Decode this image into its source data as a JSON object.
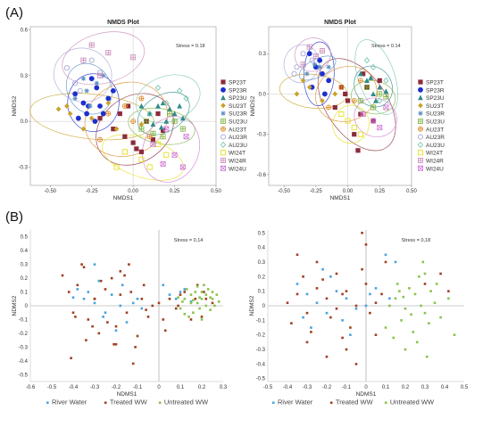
{
  "figure": {
    "label_a": "(A)",
    "label_b": "(B)"
  },
  "chart_data": [
    {
      "type": "scatter",
      "title": "NMDS Plot",
      "xlabel": "NMDS1",
      "ylabel": "NMDS2",
      "xlim": [
        -0.62,
        0.5
      ],
      "ylim": [
        -0.42,
        0.62
      ],
      "xticks": [
        "-0.50",
        "-0.25",
        "0.00",
        "0.25",
        "0.50"
      ],
      "yticks": [
        "-0.3",
        "0.0",
        "0.3",
        "0.6"
      ],
      "stress": "Stress = 0.18",
      "legend_position": "right",
      "grid": false,
      "series": [
        {
          "name": "SP23T",
          "color": "#8b2b3a",
          "marker": "square",
          "x": [
            -0.05,
            0.02,
            0.08,
            -0.12,
            0.15,
            0.12,
            0.05,
            -0.2,
            -0.08,
            0.18,
            0.0,
            -0.03
          ],
          "y": [
            -0.1,
            -0.18,
            0.0,
            -0.05,
            0.05,
            -0.12,
            -0.2,
            0.02,
            0.05,
            -0.06,
            -0.14,
            0.1
          ]
        },
        {
          "name": "SP23R",
          "color": "#1d2fd0",
          "marker": "circle",
          "x": [
            -0.35,
            -0.3,
            -0.28,
            -0.22,
            -0.2,
            -0.15,
            -0.33,
            -0.25,
            -0.18,
            -0.27,
            -0.23,
            -0.12
          ],
          "y": [
            0.18,
            0.12,
            0.05,
            0.22,
            0.1,
            0.15,
            0.02,
            0.28,
            0.05,
            0.1,
            0.0,
            0.2
          ]
        },
        {
          "name": "SP23U",
          "color": "#2e8b8b",
          "marker": "triangle",
          "x": [
            0.1,
            0.15,
            0.2,
            0.25,
            0.18,
            0.22,
            0.12,
            0.28,
            0.05,
            0.3,
            0.17
          ],
          "y": [
            0.05,
            0.1,
            0.0,
            0.05,
            0.12,
            0.08,
            -0.02,
            0.1,
            0.1,
            0.02,
            -0.04
          ]
        },
        {
          "name": "SU23T",
          "color": "#c9a22a",
          "marker": "diamond",
          "x": [
            -0.4,
            -0.38,
            -0.15,
            -0.3,
            -0.1,
            0.05,
            -0.45,
            -0.25
          ],
          "y": [
            0.1,
            0.05,
            0.12,
            -0.05,
            -0.05,
            -0.02,
            0.08,
            0.02
          ]
        },
        {
          "name": "SU23R",
          "color": "#5b8fc0",
          "marker": "asterisk",
          "x": [
            -0.28,
            -0.22,
            -0.35,
            -0.18,
            -0.3,
            -0.26
          ],
          "y": [
            0.2,
            0.25,
            0.15,
            0.3,
            0.28,
            0.1
          ]
        },
        {
          "name": "SU23U",
          "color": "#7fb343",
          "marker": "plus-box",
          "x": [
            0.05,
            0.18,
            0.25,
            0.12,
            0.3,
            0.22,
            0.08
          ],
          "y": [
            -0.05,
            -0.1,
            0.0,
            -0.08,
            -0.05,
            0.05,
            0.0
          ]
        },
        {
          "name": "AU23T",
          "color": "#e08a2a",
          "marker": "plus-circle",
          "x": [
            -0.15,
            -0.05,
            0.1,
            0.0,
            -0.2,
            0.05
          ],
          "y": [
            0.05,
            0.1,
            -0.1,
            0.0,
            -0.12,
            0.15
          ]
        },
        {
          "name": "AU23R",
          "color": "#a8a8d8",
          "marker": "circle-open",
          "x": [
            -0.4,
            -0.25,
            -0.32,
            -0.2,
            -0.35
          ],
          "y": [
            0.35,
            0.4,
            0.2,
            0.32,
            0.25
          ]
        },
        {
          "name": "AU23U",
          "color": "#7cc8b0",
          "marker": "diamond-open",
          "x": [
            0.2,
            0.28,
            0.1,
            0.32,
            0.15
          ],
          "y": [
            0.12,
            0.2,
            0.05,
            0.15,
            0.22
          ]
        },
        {
          "name": "WI24T",
          "color": "#e5e020",
          "marker": "square-open",
          "x": [
            -0.05,
            0.05,
            0.15,
            -0.1,
            0.2,
            0.1
          ],
          "y": [
            -0.2,
            -0.25,
            -0.15,
            -0.3,
            -0.22,
            -0.3
          ]
        },
        {
          "name": "WI24R",
          "color": "#c78ab8",
          "marker": "plus-box",
          "x": [
            -0.3,
            -0.15,
            -0.2,
            -0.25,
            0.0
          ],
          "y": [
            0.4,
            0.45,
            0.3,
            0.5,
            0.42
          ]
        },
        {
          "name": "WI24U",
          "color": "#d07ad8",
          "marker": "x-box",
          "x": [
            0.12,
            0.25,
            0.32,
            0.18,
            0.3,
            0.2
          ],
          "y": [
            -0.15,
            -0.22,
            -0.1,
            -0.28,
            -0.3,
            -0.05
          ]
        }
      ]
    },
    {
      "type": "scatter",
      "title": "NMDS Plot",
      "xlabel": "NMDS1",
      "ylabel": "NMDS2",
      "xlim": [
        -0.62,
        0.5
      ],
      "ylim": [
        -0.68,
        0.5
      ],
      "xticks": [
        "-0.50",
        "-0.25",
        "0.00",
        "0.25",
        "0.50"
      ],
      "yticks": [
        "-0.6",
        "-0.3",
        "0.0",
        "0.3"
      ],
      "stress": "Stress = 0.14",
      "legend_position": "right",
      "grid": false,
      "series": [
        {
          "name": "SP23T",
          "color": "#8b2b3a",
          "marker": "square",
          "x": [
            0.0,
            0.1,
            -0.05,
            0.15,
            0.2,
            0.05,
            -0.1,
            0.25,
            0.12,
            0.08,
            -0.02
          ],
          "y": [
            -0.05,
            -0.15,
            0.05,
            0.05,
            -0.2,
            -0.3,
            -0.1,
            0.1,
            0.15,
            -0.42,
            0.0
          ]
        },
        {
          "name": "SP23R",
          "color": "#1d2fd0",
          "marker": "circle",
          "x": [
            -0.3,
            -0.25,
            -0.2,
            -0.15,
            -0.28,
            -0.22,
            -0.18
          ],
          "y": [
            0.3,
            0.2,
            0.15,
            0.1,
            0.05,
            0.25,
            0.0
          ]
        },
        {
          "name": "SP23U",
          "color": "#2e8b8b",
          "marker": "triangle",
          "x": [
            0.15,
            0.2,
            0.25,
            0.1,
            0.22,
            0.3,
            0.18
          ],
          "y": [
            0.1,
            0.0,
            0.05,
            0.15,
            -0.05,
            0.02,
            0.12
          ]
        },
        {
          "name": "SU23T",
          "color": "#c9a22a",
          "marker": "diamond",
          "x": [
            -0.35,
            -0.3,
            -0.1,
            -0.4,
            -0.2
          ],
          "y": [
            0.1,
            0.05,
            0.0,
            0.0,
            -0.05
          ]
        },
        {
          "name": "SU23R",
          "color": "#5b8fc0",
          "marker": "asterisk",
          "x": [
            -0.22,
            -0.32,
            -0.15,
            -0.26
          ],
          "y": [
            0.2,
            0.15,
            0.2,
            0.22
          ]
        },
        {
          "name": "SU23U",
          "color": "#7fb343",
          "marker": "plus-box",
          "x": [
            0.1,
            0.2,
            0.25,
            0.15,
            0.3
          ],
          "y": [
            -0.05,
            -0.1,
            0.0,
            0.05,
            -0.02
          ]
        },
        {
          "name": "AU23T",
          "color": "#e08a2a",
          "marker": "plus-circle",
          "x": [
            -0.05,
            0.05,
            -0.15,
            0.1
          ],
          "y": [
            0.05,
            -0.05,
            -0.1,
            0.1
          ]
        },
        {
          "name": "AU23R",
          "color": "#a8a8d8",
          "marker": "circle-open",
          "x": [
            -0.4,
            -0.35,
            -0.28,
            -0.42
          ],
          "y": [
            0.2,
            0.3,
            0.25,
            0.15
          ]
        },
        {
          "name": "AU23U",
          "color": "#7cc8b0",
          "marker": "diamond-open",
          "x": [
            0.2,
            0.3,
            0.15,
            0.25
          ],
          "y": [
            0.2,
            0.1,
            0.25,
            -0.05
          ]
        },
        {
          "name": "WI24T",
          "color": "#e5e020",
          "marker": "square-open",
          "x": [
            0.0,
            0.1,
            0.05,
            -0.05
          ],
          "y": [
            -0.2,
            -0.3,
            -0.25,
            -0.15
          ]
        },
        {
          "name": "WI24R",
          "color": "#c78ab8",
          "marker": "plus-box",
          "x": [
            -0.3,
            -0.2,
            -0.25,
            -0.35
          ],
          "y": [
            0.35,
            0.32,
            0.28,
            0.22
          ]
        },
        {
          "name": "WI24U",
          "color": "#d07ad8",
          "marker": "x-box",
          "x": [
            0.2,
            0.3,
            0.25,
            0.12
          ],
          "y": [
            -0.2,
            -0.1,
            -0.25,
            -0.15
          ]
        }
      ]
    },
    {
      "type": "scatter",
      "xlabel": "NDMS1",
      "ylabel": "NDMS2",
      "xlim": [
        -0.6,
        0.3
      ],
      "ylim": [
        -0.55,
        0.55
      ],
      "xticks": [
        "-0.6",
        "-0.5",
        "-0.4",
        "-0.3",
        "-0.2",
        "-0.1",
        "0",
        "0.1",
        "0.2",
        "0.3"
      ],
      "yticks": [
        "-0.5",
        "-0.4",
        "-0.3",
        "-0.2",
        "-0.1",
        "0",
        "0.1",
        "0.2",
        "0.3",
        "0.4",
        "0.5"
      ],
      "stress": "Stress = 0,14",
      "legend_position": "bottom",
      "grid": false,
      "series": [
        {
          "name": "River Water",
          "color": "#4aa3df",
          "x": [
            -0.38,
            -0.35,
            -0.3,
            -0.28,
            -0.22,
            -0.25,
            -0.18,
            -0.12,
            -0.33,
            -0.15,
            -0.2,
            -0.1,
            0.02,
            0.08,
            0.12,
            0.15,
            0.05,
            -0.4,
            -0.3,
            -0.08,
            0.1,
            -0.17,
            -0.26
          ],
          "y": [
            0.12,
            0.05,
            0.02,
            0.18,
            0.08,
            -0.05,
            0.0,
            0.02,
            0.1,
            -0.12,
            -0.18,
            0.05,
            0.15,
            0.05,
            0.12,
            0.03,
            0.08,
            0.06,
            0.3,
            -0.02,
            0.1,
            0.15,
            -0.08
          ]
        },
        {
          "name": "Treated WW",
          "color": "#a0401f",
          "x": [
            -0.45,
            -0.42,
            -0.4,
            -0.38,
            -0.35,
            -0.33,
            -0.3,
            -0.28,
            -0.25,
            -0.22,
            -0.2,
            -0.18,
            -0.15,
            -0.13,
            -0.1,
            -0.08,
            -0.05,
            -0.03,
            0.0,
            0.02,
            0.05,
            0.08,
            0.1,
            0.12,
            0.15,
            0.18,
            0.2,
            0.22,
            0.25,
            -0.41,
            -0.36,
            -0.31,
            -0.27,
            -0.21,
            -0.16,
            -0.11,
            -0.06,
            -0.12,
            -0.2,
            -0.3,
            -0.24,
            -0.14,
            -0.07,
            0.03,
            0.09,
            0.17,
            0.21,
            -0.39,
            -0.34,
            -0.18
          ],
          "y": [
            0.22,
            0.1,
            -0.05,
            0.15,
            0.28,
            -0.1,
            0.05,
            -0.2,
            0.12,
            0.2,
            -0.15,
            0.08,
            -0.05,
            0.1,
            -0.22,
            0.05,
            -0.08,
            0.0,
            0.02,
            -0.1,
            0.05,
            -0.02,
            0.08,
            0.1,
            -0.1,
            0.15,
            -0.08,
            0.05,
            0.02,
            -0.38,
            0.3,
            -0.15,
            0.18,
            -0.28,
            0.22,
            -0.3,
            -0.03,
            -0.42,
            -0.28,
            0.05,
            -0.12,
            0.3,
            0.15,
            -0.18,
            0.0,
            0.05,
            0.1,
            -0.08,
            -0.25,
            0.25
          ]
        },
        {
          "name": "Untreated WW",
          "color": "#8bc34a",
          "x": [
            0.12,
            0.15,
            0.18,
            0.2,
            0.22,
            0.25,
            0.1,
            0.13,
            0.16,
            0.19,
            0.21,
            0.24,
            0.27,
            0.11,
            0.14,
            0.17,
            0.2,
            0.23,
            0.26,
            0.09,
            0.15,
            0.19,
            0.22,
            0.18,
            0.25,
            0.28,
            0.12,
            0.16,
            0.2,
            0.24
          ],
          "y": [
            0.05,
            0.08,
            0.02,
            0.1,
            0.0,
            0.05,
            -0.02,
            0.12,
            -0.05,
            0.06,
            0.15,
            -0.03,
            0.08,
            0.03,
            -0.08,
            0.1,
            0.05,
            0.12,
            0.0,
            0.06,
            0.02,
            -0.02,
            0.08,
            0.14,
            0.1,
            0.03,
            -0.06,
            0.04,
            -0.1,
            0.06
          ]
        }
      ]
    },
    {
      "type": "scatter",
      "xlabel": "NDMS1",
      "ylabel": "NDMS2",
      "xlim": [
        -0.5,
        0.5
      ],
      "ylim": [
        -0.52,
        0.52
      ],
      "xticks": [
        "-0.5",
        "-0.4",
        "-0.3",
        "-0.2",
        "-0.1",
        "0",
        "0.1",
        "0.2",
        "0.3",
        "0.4",
        "0.5"
      ],
      "yticks": [
        "-0.5",
        "-0.4",
        "-0.3",
        "-0.2",
        "-0.1",
        "0",
        "0.1",
        "0.2",
        "0.3",
        "0.4",
        "0.5"
      ],
      "stress": "Stress = 0,18",
      "legend_position": "bottom",
      "grid": false,
      "series": [
        {
          "name": "River Water",
          "color": "#4aa3df",
          "x": [
            -0.3,
            -0.25,
            -0.2,
            -0.15,
            -0.1,
            -0.05,
            0.05,
            0.1,
            -0.35,
            -0.28,
            -0.18,
            -0.12,
            0.0,
            -0.08,
            0.02,
            -0.22,
            0.15,
            -0.32,
            0.12
          ],
          "y": [
            0.08,
            0.02,
            -0.05,
            0.1,
            0.05,
            -0.02,
            0.12,
            0.35,
            0.15,
            -0.15,
            0.2,
            -0.1,
            0.0,
            -0.2,
            0.08,
            0.25,
            0.3,
            -0.08,
            0.05
          ]
        },
        {
          "name": "Treated WW",
          "color": "#a0401f",
          "x": [
            -0.4,
            -0.35,
            -0.3,
            -0.25,
            -0.2,
            -0.15,
            -0.1,
            -0.05,
            0.0,
            0.05,
            -0.38,
            -0.32,
            -0.28,
            -0.22,
            -0.18,
            -0.12,
            -0.08,
            -0.02,
            0.02,
            0.08,
            -0.02,
            0.0,
            -0.25,
            -0.15,
            0.38,
            0.42,
            0.3,
            -0.1,
            -0.3,
            -0.2,
            -0.05,
            0.05,
            -0.35,
            0.1,
            -0.12
          ],
          "y": [
            0.02,
            0.08,
            -0.05,
            0.12,
            0.05,
            -0.02,
            0.1,
            0.0,
            0.15,
            0.02,
            -0.12,
            0.2,
            -0.18,
            0.18,
            -0.08,
            0.08,
            -0.15,
            0.25,
            -0.05,
            0.08,
            0.5,
            0.42,
            0.3,
            0.22,
            0.22,
            0.1,
            0.15,
            -0.3,
            -0.25,
            -0.35,
            -0.4,
            -0.2,
            0.35,
            0.3,
            -0.22
          ]
        },
        {
          "name": "Untreated WW",
          "color": "#8bc34a",
          "x": [
            0.15,
            0.2,
            0.25,
            0.3,
            0.35,
            0.18,
            0.22,
            0.28,
            0.32,
            0.12,
            0.16,
            0.24,
            0.27,
            0.33,
            0.38,
            0.14,
            0.2,
            0.26,
            0.3,
            0.42,
            0.19,
            0.23,
            0.36,
            0.1,
            0.29,
            0.45,
            0.17,
            0.31
          ],
          "y": [
            0.05,
            -0.02,
            0.08,
            -0.05,
            0.02,
            -0.1,
            0.12,
            0.0,
            -0.12,
            0.0,
            0.15,
            -0.18,
            0.2,
            0.1,
            -0.08,
            -0.22,
            -0.3,
            -0.25,
            0.22,
            0.05,
            0.06,
            -0.06,
            0.15,
            -0.15,
            0.3,
            -0.2,
            0.1,
            -0.35
          ]
        }
      ]
    }
  ]
}
